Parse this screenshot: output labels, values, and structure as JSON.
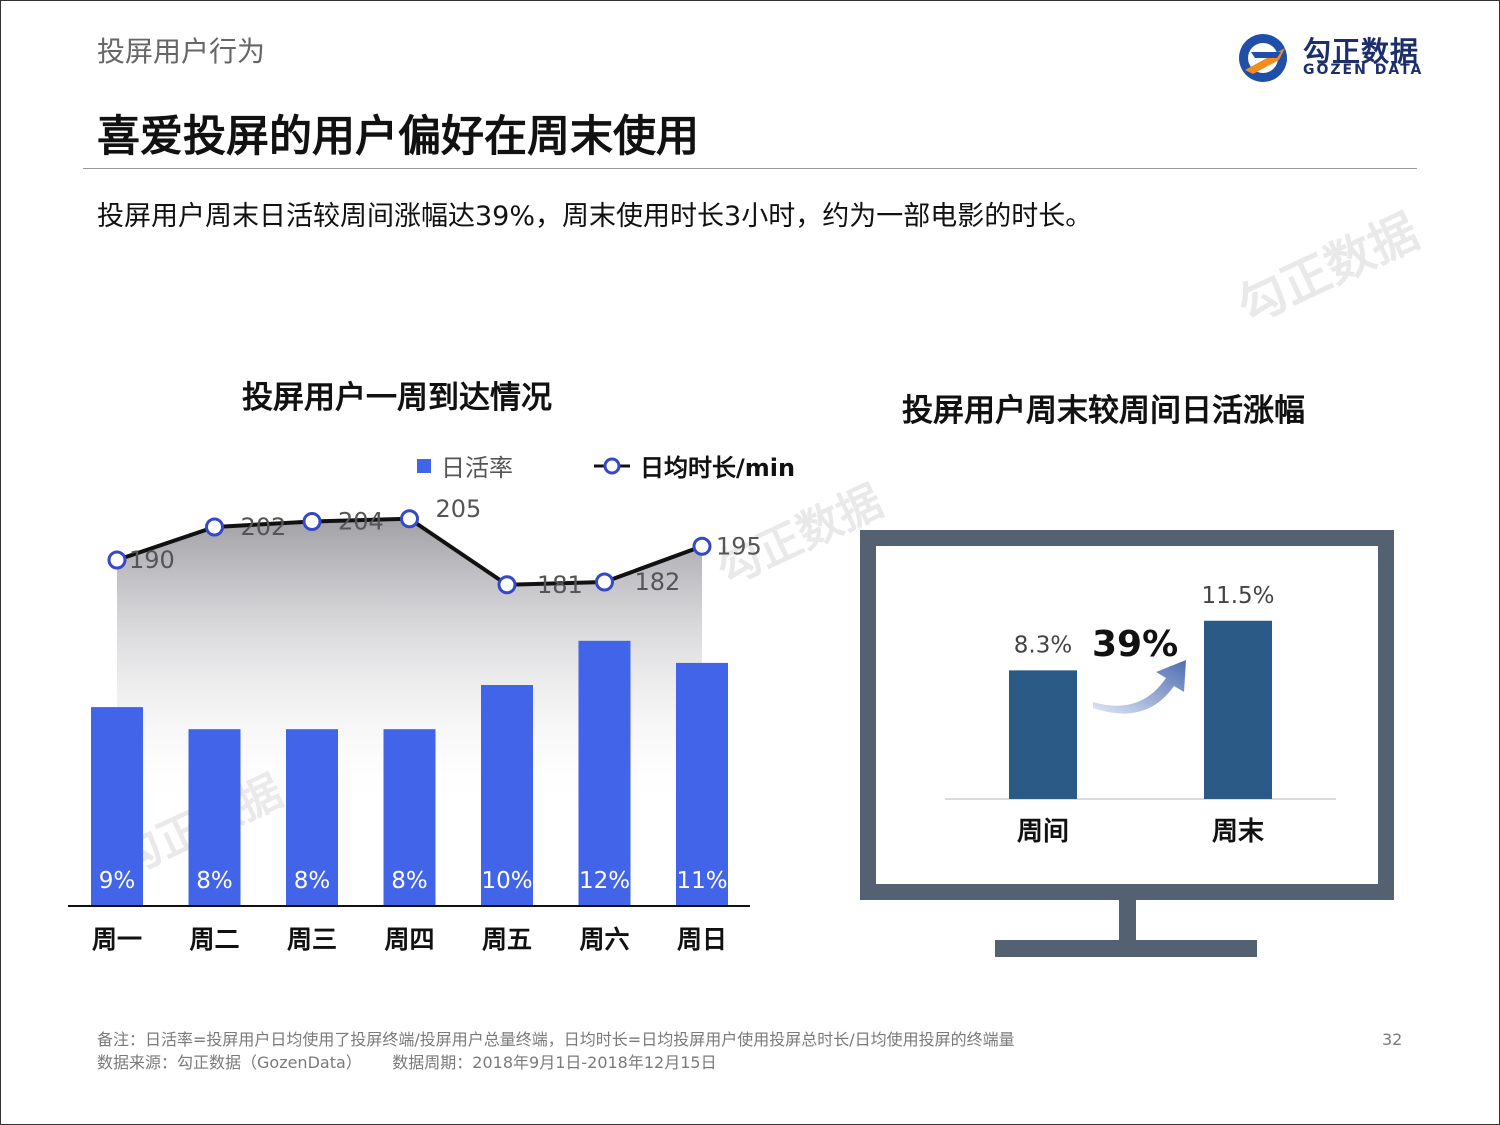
{
  "header": {
    "section": "投屏用户行为",
    "headline": "喜爱投屏的用户偏好在周末使用",
    "summary": "投屏用户周末日活较周间涨幅达39%，周末使用时长3小时，约为一部电影的时长。"
  },
  "logo": {
    "brand_cn": "勾正数据",
    "brand_en": "GOZEN DATA"
  },
  "colors": {
    "bar_primary": "#4264e8",
    "bar_secondary": "#2c5a87",
    "monitor_frame": "#536170",
    "line": "#111111",
    "marker": "#3548c8"
  },
  "charts": {
    "left_title": "投屏用户一周到达情况",
    "right_title": "投屏用户周末较周间日活涨幅",
    "right_growth_label": "39%"
  },
  "chart_data": [
    {
      "type": "bar",
      "categories": [
        "周一",
        "周二",
        "周三",
        "周四",
        "周五",
        "周六",
        "周日"
      ],
      "series": [
        {
          "name": "日活率",
          "type": "bar",
          "values": [
            9,
            8,
            8,
            8,
            10,
            12,
            11
          ],
          "labels": [
            "9%",
            "8%",
            "8%",
            "8%",
            "10%",
            "12%",
            "11%"
          ]
        },
        {
          "name": "日均时长/min",
          "type": "line",
          "values": [
            190,
            202,
            204,
            205,
            181,
            182,
            195
          ],
          "labels": [
            "190",
            "202",
            "204",
            "205",
            "181",
            "182",
            "195"
          ]
        }
      ],
      "legend": "top"
    },
    {
      "type": "bar",
      "categories": [
        "周间",
        "周末"
      ],
      "values": [
        8.3,
        11.5
      ],
      "labels": [
        "8.3%",
        "11.5%"
      ]
    }
  ],
  "notes": {
    "definition": "备注：日活率=投屏用户日均使用了投屏终端/投屏用户总量终端，日均时长=日均投屏用户使用投屏总时长/日均使用投屏的终端量",
    "source": "数据来源：勾正数据（GozenData）      数据周期：2018年9月1日-2018年12月15日",
    "page": "32"
  }
}
